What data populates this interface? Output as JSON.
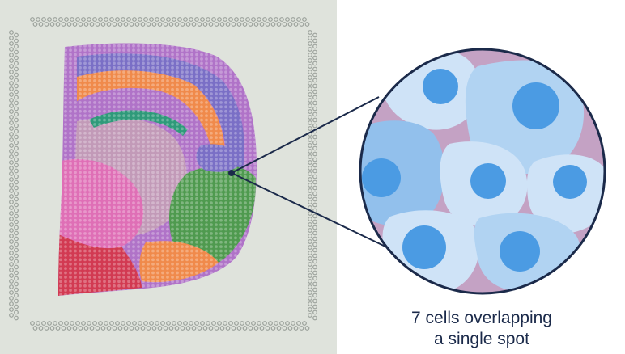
{
  "caption": {
    "line1": "7 cells overlapping",
    "line2": "a single spot"
  },
  "colors": {
    "slide_background": "#dfe3dc",
    "fiducial_dot": "#9aa09a",
    "tissue_spot": "#8c90b0",
    "connector_line": "#1b2a4a",
    "zoom_circle_border": "#1b2a4a",
    "zoom_background": "#c4a2c4",
    "cell_light": "#cfe3f7",
    "cell_medium": "#b1d3f2",
    "cell_dark": "#92c0ec",
    "nucleus": "#4b9be3"
  },
  "regions": [
    {
      "name": "cortex-outer",
      "color": "#b073c8"
    },
    {
      "name": "cortex-band",
      "color": "#7a6fc6"
    },
    {
      "name": "white-matter",
      "color": "#f08a4b"
    },
    {
      "name": "hippocampus",
      "color": "#2f9a7a"
    },
    {
      "name": "thalamus",
      "color": "#c29ab8"
    },
    {
      "name": "striatum",
      "color": "#df6fb6"
    },
    {
      "name": "hypothalamus",
      "color": "#d23a52"
    },
    {
      "name": "midbrain",
      "color": "#4f9a4f"
    }
  ],
  "cells": [
    {
      "id": 1,
      "shade": "cell_light"
    },
    {
      "id": 2,
      "shade": "cell_medium"
    },
    {
      "id": 3,
      "shade": "cell_dark"
    },
    {
      "id": 4,
      "shade": "cell_light"
    },
    {
      "id": 5,
      "shade": "cell_light"
    },
    {
      "id": 6,
      "shade": "cell_light"
    },
    {
      "id": 7,
      "shade": "cell_medium"
    }
  ]
}
